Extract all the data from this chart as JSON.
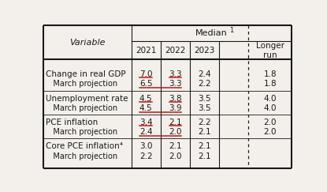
{
  "col_header_left": "Variable",
  "median_label": "Median",
  "median_sup": "1",
  "year_cols": [
    "2021",
    "2022",
    "2023"
  ],
  "longer_run_label": "Longer\nrun",
  "rows": [
    {
      "label": "Change in real GDP",
      "sub_label": "   March projection",
      "vals": [
        "7.0",
        "3.3",
        "2.4",
        "1.8"
      ],
      "sub_vals": [
        "6.5",
        "3.3",
        "2.2",
        "1.8"
      ],
      "red_underline_main": [
        0,
        1
      ],
      "red_underline_sub": [
        0,
        1
      ]
    },
    {
      "label": "Unemployment rate",
      "sub_label": "   March projection",
      "vals": [
        "4.5",
        "3.8",
        "3.5",
        "4.0"
      ],
      "sub_vals": [
        "4.5",
        "3.9",
        "3.5",
        "4.0"
      ],
      "red_underline_main": [
        0,
        1
      ],
      "red_underline_sub": [
        0,
        1
      ]
    },
    {
      "label": "PCE inflation",
      "sub_label": "   March projection",
      "vals": [
        "3.4",
        "2.1",
        "2.2",
        "2.0"
      ],
      "sub_vals": [
        "2.4",
        "2.0",
        "2.1",
        "2.0"
      ],
      "red_underline_main": [
        0,
        1
      ],
      "red_underline_sub": [
        0,
        1
      ]
    },
    {
      "label": "Core PCE inflation⁴",
      "sub_label": "   March projection",
      "vals": [
        "3.0",
        "2.1",
        "2.1",
        ""
      ],
      "sub_vals": [
        "2.2",
        "2.0",
        "2.1",
        ""
      ],
      "red_underline_main": [],
      "red_underline_sub": []
    }
  ],
  "bg_color": "#f3f0eb",
  "text_color": "#1a1a1a",
  "red_color": "#cc1111",
  "font_size": 7.5,
  "header_font_size": 8.0
}
